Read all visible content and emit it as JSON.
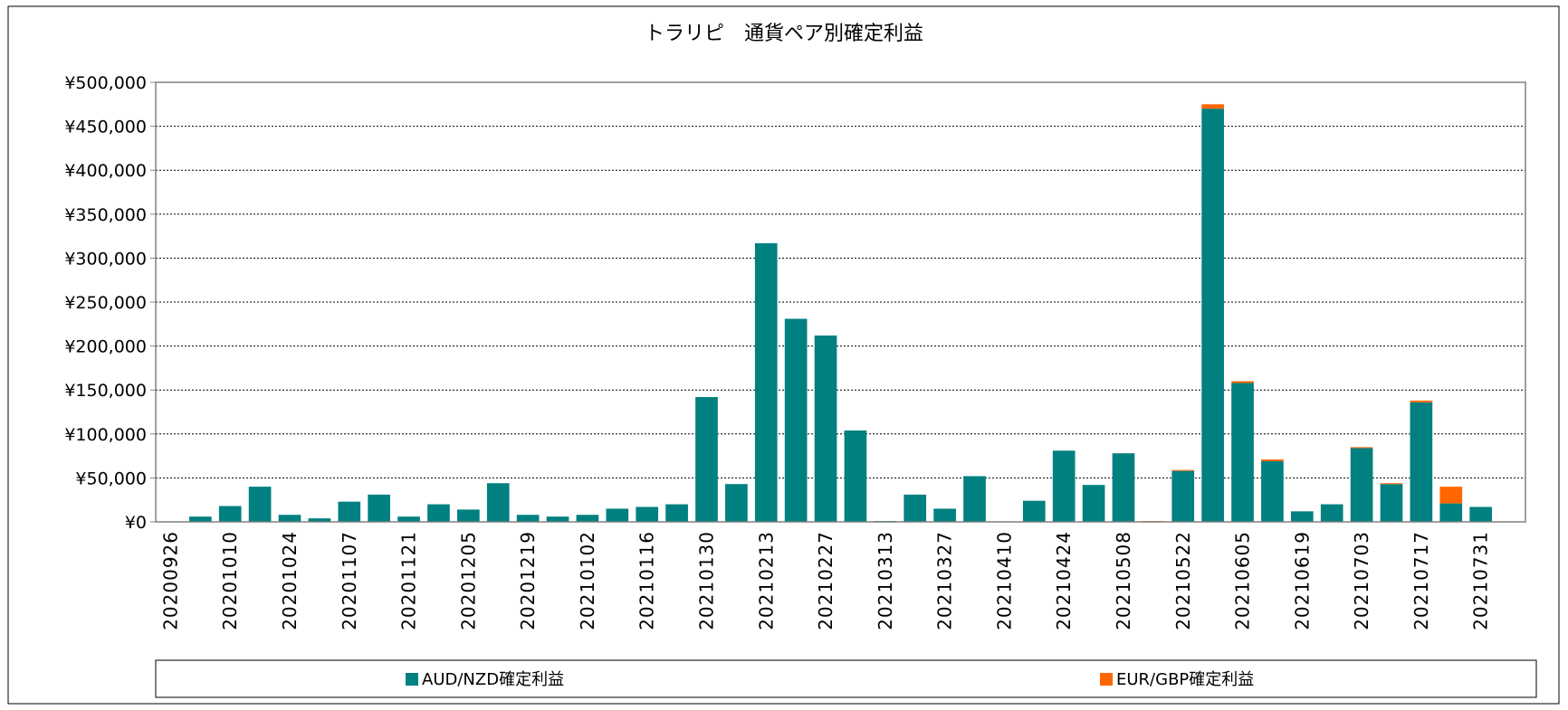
{
  "chart_data": {
    "type": "bar",
    "stacked": true,
    "title": "トラリピ　通貨ペア別確定利益",
    "xlabel": "",
    "ylabel": "",
    "ylim": [
      0,
      500000
    ],
    "ytick_step": 50000,
    "ytick_labels": [
      "¥0",
      "¥50,000",
      "¥100,000",
      "¥150,000",
      "¥200,000",
      "¥250,000",
      "¥300,000",
      "¥350,000",
      "¥400,000",
      "¥450,000",
      "¥500,000"
    ],
    "grid": "horizontal dotted",
    "legend_position": "bottom",
    "categories": [
      "20200926",
      "20201003",
      "20201010",
      "20201017",
      "20201024",
      "20201031",
      "20201107",
      "20201114",
      "20201121",
      "20201128",
      "20201205",
      "20201212",
      "20201219",
      "20201226",
      "20210102",
      "20210109",
      "20210116",
      "20210123",
      "20210130",
      "20210206",
      "20210213",
      "20210220",
      "20210227",
      "20210306",
      "20210313",
      "20210320",
      "20210327",
      "20210403",
      "20210410",
      "20210417",
      "20210424",
      "20210501",
      "20210508",
      "20210515",
      "20210522",
      "20210529",
      "20210605",
      "20210612",
      "20210619",
      "20210626",
      "20210703",
      "20210710",
      "20210717",
      "20210724",
      "20210731",
      "20210807"
    ],
    "visible_tick_labels": [
      "20200926",
      "20201010",
      "20201024",
      "20201107",
      "20201121",
      "20201205",
      "20201219",
      "20210102",
      "20210116",
      "20210130",
      "20210213",
      "20210227",
      "20210313",
      "20210327",
      "20210410",
      "20210424",
      "20210508",
      "20210522",
      "20210605",
      "20210619",
      "20210703",
      "20210717",
      "20210731"
    ],
    "series": [
      {
        "name": "AUD/NZD確定利益",
        "color": "#008080",
        "values": [
          500,
          6000,
          18000,
          40000,
          8000,
          4000,
          23000,
          31000,
          6000,
          20000,
          14000,
          44000,
          8000,
          6000,
          8000,
          15000,
          17000,
          20000,
          142000,
          43000,
          317000,
          231000,
          212000,
          104000,
          1000,
          31000,
          15000,
          52000,
          500,
          24000,
          81000,
          42000,
          78000,
          0,
          58000,
          470000,
          158000,
          69000,
          12000,
          20000,
          84000,
          43000,
          136000,
          21000,
          17000,
          500
        ]
      },
      {
        "name": "EUR/GBP確定利益",
        "color": "#FF6600",
        "values": [
          0,
          0,
          0,
          0,
          0,
          0,
          0,
          0,
          0,
          0,
          0,
          0,
          0,
          0,
          0,
          0,
          0,
          0,
          0,
          0,
          0,
          0,
          0,
          0,
          0,
          0,
          0,
          0,
          0,
          0,
          0,
          0,
          0,
          1000,
          1000,
          5000,
          2000,
          2000,
          0,
          0,
          1000,
          1000,
          2000,
          19000,
          0,
          0
        ]
      }
    ]
  }
}
